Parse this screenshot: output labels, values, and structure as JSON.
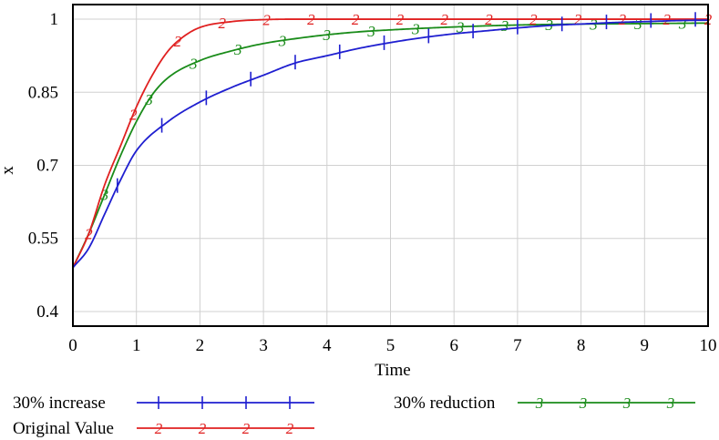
{
  "chart_data": {
    "type": "line",
    "title": "",
    "xlabel": "Time",
    "ylabel": "x",
    "xlim": [
      0,
      10
    ],
    "ylim": [
      0.37,
      1.03
    ],
    "xticks": [
      "0",
      "1",
      "2",
      "3",
      "4",
      "5",
      "6",
      "7",
      "8",
      "9",
      "10"
    ],
    "yticks": [
      {
        "value": 0.4,
        "label": "0.4"
      },
      {
        "value": 0.55,
        "label": "0.55"
      },
      {
        "value": 0.7,
        "label": "0.7"
      },
      {
        "value": 0.85,
        "label": "0.85"
      },
      {
        "value": 1.0,
        "label": "1"
      }
    ],
    "grid": true,
    "legend_position": "bottom",
    "series": [
      {
        "name": "30% increase",
        "marker": "1",
        "color": "#1f1fd0",
        "x": [
          0,
          0.25,
          0.5,
          0.75,
          1,
          1.5,
          2,
          2.5,
          3,
          3.5,
          4,
          4.5,
          5,
          5.5,
          6,
          6.5,
          7,
          7.5,
          8,
          8.5,
          9,
          9.5,
          10
        ],
        "y": [
          0.49,
          0.53,
          0.6,
          0.67,
          0.73,
          0.79,
          0.83,
          0.86,
          0.885,
          0.91,
          0.925,
          0.94,
          0.952,
          0.962,
          0.97,
          0.976,
          0.982,
          0.987,
          0.99,
          0.993,
          0.995,
          0.997,
          0.998
        ]
      },
      {
        "name": "Original Value",
        "marker": "2",
        "color": "#e02020",
        "x": [
          0,
          0.25,
          0.5,
          0.75,
          1,
          1.25,
          1.5,
          1.75,
          2,
          2.5,
          3,
          3.5,
          4,
          5,
          6,
          7,
          8,
          9,
          10
        ],
        "y": [
          0.49,
          0.56,
          0.66,
          0.74,
          0.82,
          0.885,
          0.935,
          0.965,
          0.983,
          0.995,
          0.999,
          1.0,
          1.0,
          1.0,
          1.0,
          1.0,
          1.0,
          1.0,
          1.0
        ]
      },
      {
        "name": "30% reduction",
        "marker": "3",
        "color": "#1a8c1a",
        "x": [
          0,
          0.25,
          0.5,
          0.75,
          1,
          1.25,
          1.5,
          2,
          2.5,
          3,
          3.5,
          4,
          4.5,
          5,
          6,
          7,
          8,
          9,
          10
        ],
        "y": [
          0.49,
          0.56,
          0.64,
          0.72,
          0.79,
          0.845,
          0.88,
          0.915,
          0.935,
          0.95,
          0.96,
          0.968,
          0.974,
          0.978,
          0.984,
          0.988,
          0.99,
          0.991,
          0.992
        ]
      }
    ],
    "marker_positions": {
      "30% increase": [
        0,
        0.7,
        1.4,
        2.1,
        2.8,
        3.5,
        4.2,
        4.9,
        5.6,
        6.3,
        7.0,
        7.7,
        8.4,
        9.1,
        9.8
      ],
      "Original Value": [
        0.25,
        0.95,
        1.65,
        2.35,
        3.05,
        3.75,
        4.45,
        5.15,
        5.85,
        6.55,
        7.25,
        7.95,
        8.65,
        9.35,
        10.0
      ],
      "30% reduction": [
        0.5,
        1.2,
        1.9,
        2.6,
        3.3,
        4.0,
        4.7,
        5.4,
        6.1,
        6.8,
        7.5,
        8.2,
        8.9,
        9.6
      ]
    },
    "legend": [
      {
        "name": "30% increase",
        "marker": "1"
      },
      {
        "name": "30% reduction",
        "marker": "3"
      },
      {
        "name": "Original Value",
        "marker": "2"
      }
    ]
  }
}
